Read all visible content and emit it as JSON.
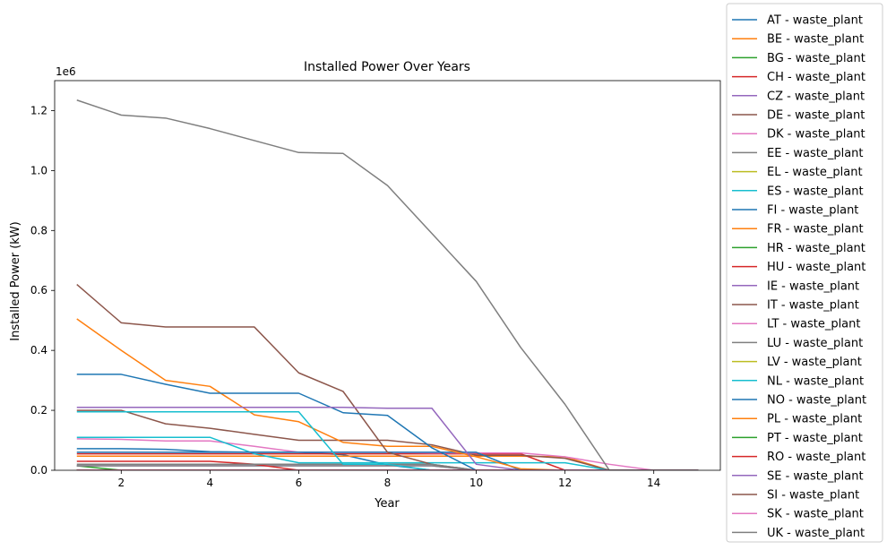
{
  "chart_data": {
    "type": "line",
    "title": "Installed Power Over Years",
    "xlabel": "Year",
    "ylabel": "Installed Power (kW)",
    "y_offset_label": "1e6",
    "xlim": [
      0.5,
      15.5
    ],
    "ylim": [
      0,
      1.3
    ],
    "x_ticks": [
      2,
      4,
      6,
      8,
      10,
      12,
      14
    ],
    "y_ticks": [
      0.0,
      0.2,
      0.4,
      0.6,
      0.8,
      1.0,
      1.2
    ],
    "y_tick_labels": [
      "0.0",
      "0.2",
      "0.4",
      "0.6",
      "0.8",
      "1.0",
      "1.2"
    ],
    "grid": false,
    "legend_position": "outside right",
    "x": [
      1,
      2,
      3,
      4,
      5,
      6,
      7,
      8,
      9,
      10,
      11,
      12,
      13,
      14,
      15
    ],
    "series": [
      {
        "name": "AT - waste_plant",
        "color": "#1f77b4",
        "values": [
          0.072,
          0.072,
          0.07,
          0.062,
          0.06,
          0.06,
          0.052,
          0.018,
          0.0,
          0.0,
          0.0,
          0.0,
          0.0,
          0.0,
          0.0
        ]
      },
      {
        "name": "BE - waste_plant",
        "color": "#ff7f0e",
        "values": [
          0.047,
          0.047,
          0.047,
          0.047,
          0.047,
          0.047,
          0.047,
          0.047,
          0.047,
          0.047,
          0.047,
          0.045,
          0.0,
          0.0,
          0.0
        ]
      },
      {
        "name": "BG - waste_plant",
        "color": "#2ca02c",
        "values": [
          0.015,
          0.0,
          0.0,
          0.0,
          0.0,
          0.0,
          0.0,
          0.0,
          0.0,
          0.0,
          0.0,
          0.0,
          0.0,
          0.0,
          0.0
        ]
      },
      {
        "name": "CH - waste_plant",
        "color": "#d62728",
        "values": [
          0.055,
          0.055,
          0.055,
          0.055,
          0.055,
          0.055,
          0.055,
          0.055,
          0.055,
          0.055,
          0.055,
          0.0,
          0.0,
          0.0,
          0.0
        ]
      },
      {
        "name": "CZ - waste_plant",
        "color": "#9467bd",
        "values": [
          0.015,
          0.015,
          0.015,
          0.015,
          0.015,
          0.015,
          0.015,
          0.015,
          0.015,
          0.0,
          0.0,
          0.0,
          0.0,
          0.0,
          0.0
        ]
      },
      {
        "name": "DE - waste_plant",
        "color": "#8c564b",
        "values": [
          0.2,
          0.2,
          0.155,
          0.14,
          0.12,
          0.1,
          0.1,
          0.1,
          0.085,
          0.05,
          0.05,
          0.04,
          0.0,
          0.0,
          0.0
        ]
      },
      {
        "name": "DK - waste_plant",
        "color": "#e377c2",
        "values": [
          0.105,
          0.103,
          0.098,
          0.098,
          0.08,
          0.06,
          0.06,
          0.06,
          0.058,
          0.058,
          0.058,
          0.045,
          0.02,
          0.0,
          0.0
        ]
      },
      {
        "name": "EE - waste_plant",
        "color": "#7f7f7f",
        "values": [
          0.015,
          0.015,
          0.015,
          0.015,
          0.015,
          0.015,
          0.015,
          0.015,
          0.015,
          0.0,
          0.0,
          0.0,
          0.0,
          0.0,
          0.0
        ]
      },
      {
        "name": "EL - waste_plant",
        "color": "#bcbd22",
        "values": [
          0.0,
          0.0,
          0.0,
          0.0,
          0.0,
          0.0,
          0.0,
          0.0,
          0.0,
          0.0,
          0.0,
          0.0,
          0.0,
          0.0,
          0.0
        ]
      },
      {
        "name": "ES - waste_plant",
        "color": "#17becf",
        "values": [
          0.11,
          0.11,
          0.11,
          0.11,
          0.055,
          0.025,
          0.025,
          0.025,
          0.025,
          0.025,
          0.025,
          0.025,
          0.0,
          0.0,
          0.0
        ]
      },
      {
        "name": "FI - waste_plant",
        "color": "#1f77b4",
        "values": [
          0.06,
          0.06,
          0.06,
          0.06,
          0.06,
          0.06,
          0.06,
          0.06,
          0.06,
          0.06,
          0.0,
          0.0,
          0.0,
          0.0,
          0.0
        ]
      },
      {
        "name": "FR - waste_plant",
        "color": "#ff7f0e",
        "values": [
          0.505,
          0.4,
          0.3,
          0.28,
          0.185,
          0.162,
          0.093,
          0.08,
          0.08,
          0.045,
          0.005,
          0.0,
          0.0,
          0.0,
          0.0
        ]
      },
      {
        "name": "HR - waste_plant",
        "color": "#2ca02c",
        "values": [
          0.0,
          0.0,
          0.0,
          0.0,
          0.0,
          0.0,
          0.0,
          0.0,
          0.0,
          0.0,
          0.0,
          0.0,
          0.0,
          0.0,
          0.0
        ]
      },
      {
        "name": "HU - waste_plant",
        "color": "#d62728",
        "values": [
          0.03,
          0.03,
          0.03,
          0.03,
          0.02,
          0.0,
          0.0,
          0.0,
          0.0,
          0.0,
          0.0,
          0.0,
          0.0,
          0.0,
          0.0
        ]
      },
      {
        "name": "IE - waste_plant",
        "color": "#9467bd",
        "values": [
          0.0,
          0.0,
          0.0,
          0.0,
          0.0,
          0.0,
          0.0,
          0.0,
          0.0,
          0.0,
          0.0,
          0.0,
          0.0,
          0.0,
          0.0
        ]
      },
      {
        "name": "IT - waste_plant",
        "color": "#8c564b",
        "values": [
          0.62,
          0.492,
          0.478,
          0.478,
          0.478,
          0.325,
          0.263,
          0.06,
          0.02,
          0.0,
          0.0,
          0.0,
          0.0,
          0.0,
          0.0
        ]
      },
      {
        "name": "LT - waste_plant",
        "color": "#e377c2",
        "values": [
          0.0,
          0.0,
          0.0,
          0.0,
          0.0,
          0.0,
          0.0,
          0.0,
          0.0,
          0.0,
          0.0,
          0.0,
          0.0,
          0.0,
          0.0
        ]
      },
      {
        "name": "LU - waste_plant",
        "color": "#7f7f7f",
        "values": [
          0.02,
          0.02,
          0.02,
          0.02,
          0.02,
          0.02,
          0.02,
          0.02,
          0.02,
          0.0,
          0.0,
          0.0,
          0.0,
          0.0,
          0.0
        ]
      },
      {
        "name": "LV - waste_plant",
        "color": "#bcbd22",
        "values": [
          0.0,
          0.0,
          0.0,
          0.0,
          0.0,
          0.0,
          0.0,
          0.0,
          0.0,
          0.0,
          0.0,
          0.0,
          0.0,
          0.0,
          0.0
        ]
      },
      {
        "name": "NL - waste_plant",
        "color": "#17becf",
        "values": [
          0.195,
          0.195,
          0.195,
          0.195,
          0.195,
          0.195,
          0.02,
          0.02,
          0.0,
          0.0,
          0.0,
          0.0,
          0.0,
          0.0,
          0.0
        ]
      },
      {
        "name": "NO - waste_plant",
        "color": "#1f77b4",
        "values": [
          0.32,
          0.32,
          0.287,
          0.257,
          0.257,
          0.257,
          0.192,
          0.183,
          0.075,
          0.0,
          0.0,
          0.0,
          0.0,
          0.0,
          0.0
        ]
      },
      {
        "name": "PL - waste_plant",
        "color": "#ff7f0e",
        "values": [
          0.0,
          0.0,
          0.0,
          0.0,
          0.0,
          0.0,
          0.0,
          0.0,
          0.0,
          0.0,
          0.0,
          0.0,
          0.0,
          0.0,
          0.0
        ]
      },
      {
        "name": "PT - waste_plant",
        "color": "#2ca02c",
        "values": [
          0.0,
          0.0,
          0.0,
          0.0,
          0.0,
          0.0,
          0.0,
          0.0,
          0.0,
          0.0,
          0.0,
          0.0,
          0.0,
          0.0,
          0.0
        ]
      },
      {
        "name": "RO - waste_plant",
        "color": "#d62728",
        "values": [
          0.0,
          0.0,
          0.0,
          0.0,
          0.0,
          0.0,
          0.0,
          0.0,
          0.0,
          0.0,
          0.0,
          0.0,
          0.0,
          0.0,
          0.0
        ]
      },
      {
        "name": "SE - waste_plant",
        "color": "#9467bd",
        "values": [
          0.21,
          0.21,
          0.21,
          0.21,
          0.21,
          0.21,
          0.21,
          0.207,
          0.207,
          0.02,
          0.0,
          0.0,
          0.0,
          0.0,
          0.0
        ]
      },
      {
        "name": "SI - waste_plant",
        "color": "#8c564b",
        "values": [
          0.0,
          0.0,
          0.0,
          0.0,
          0.0,
          0.0,
          0.0,
          0.0,
          0.0,
          0.0,
          0.0,
          0.0,
          0.0,
          0.0,
          0.0
        ]
      },
      {
        "name": "SK - waste_plant",
        "color": "#e377c2",
        "values": [
          0.0,
          0.0,
          0.0,
          0.0,
          0.0,
          0.0,
          0.0,
          0.0,
          0.0,
          0.0,
          0.0,
          0.0,
          0.0,
          0.0,
          0.0
        ]
      },
      {
        "name": "UK - waste_plant",
        "color": "#7f7f7f",
        "values": [
          1.235,
          1.185,
          1.175,
          1.14,
          1.1,
          1.06,
          1.057,
          0.95,
          0.79,
          0.63,
          0.41,
          0.22,
          0.0,
          0.0,
          0.0
        ]
      }
    ]
  }
}
